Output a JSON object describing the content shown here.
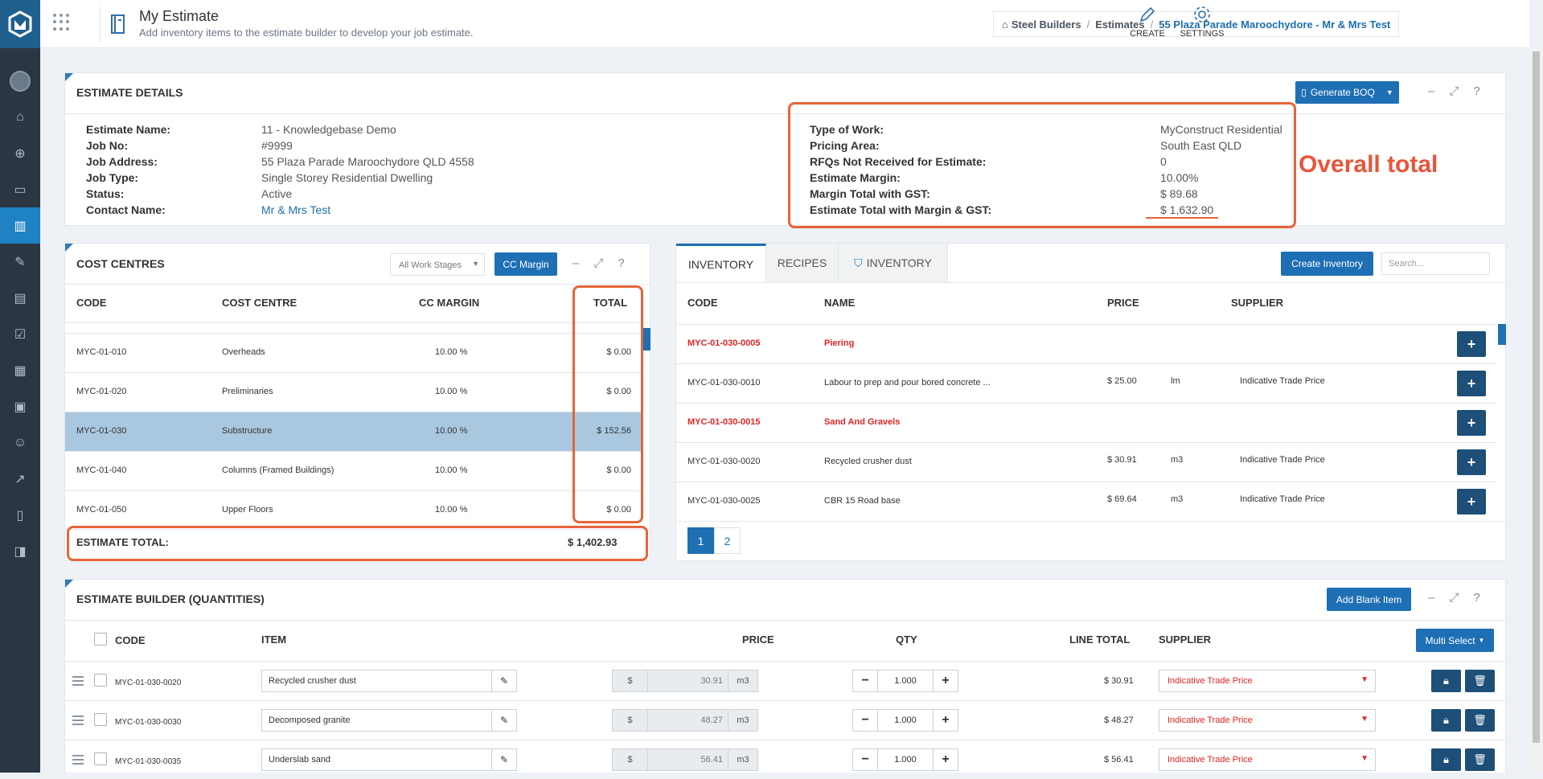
{
  "header": {
    "title": "My Estimate",
    "subtitle": "Add inventory items to the estimate builder to develop your job estimate.",
    "breadcrumb": [
      "Steel Builders",
      "Estimates",
      "55 Plaza Parade Maroochydore - Mr & Mrs Test"
    ],
    "actions": {
      "create": "CREATE",
      "settings": "SETTINGS"
    }
  },
  "sidebar": {
    "items": [
      "home",
      "target",
      "briefcase",
      "book",
      "edit",
      "document",
      "checklist",
      "building",
      "calendar",
      "user",
      "chart",
      "clipboard",
      "bookmark"
    ],
    "active_index": 3
  },
  "estimate_details": {
    "title": "ESTIMATE DETAILS",
    "generate_label": "Generate BOQ",
    "left": [
      {
        "label": "Estimate Name:",
        "value": "11 - Knowledgebase Demo"
      },
      {
        "label": "Job No:",
        "value": "#9999"
      },
      {
        "label": "Job Address:",
        "value": "55 Plaza Parade Maroochydore QLD 4558"
      },
      {
        "label": "Job Type:",
        "value": "Single Storey Residential Dwelling"
      },
      {
        "label": "Status:",
        "value": "Active"
      },
      {
        "label": "Contact Name:",
        "value": "Mr & Mrs Test"
      }
    ],
    "right": [
      {
        "label": "Type of Work:",
        "value": "MyConstruct Residential"
      },
      {
        "label": "Pricing Area:",
        "value": "South East QLD"
      },
      {
        "label": "RFQs Not Received for Estimate:",
        "value": "0"
      },
      {
        "label": "Estimate Margin:",
        "value": "10.00%"
      },
      {
        "label": "Margin Total with GST:",
        "value": "$ 89.68"
      },
      {
        "label": "Estimate Total with Margin & GST:",
        "value": "$ 1,632.90"
      }
    ],
    "annotation": "Overall total"
  },
  "cost_centres": {
    "title": "COST CENTRES",
    "stage_select": "All Work Stages",
    "margin_btn": "CC Margin",
    "columns": [
      "CODE",
      "COST CENTRE",
      "CC MARGIN",
      "TOTAL"
    ],
    "rows": [
      {
        "code": "MYC-01-010",
        "name": "Overheads",
        "margin": "10.00 %",
        "total": "$ 0.00"
      },
      {
        "code": "MYC-01-020",
        "name": "Preliminaries",
        "margin": "10.00 %",
        "total": "$ 0.00"
      },
      {
        "code": "MYC-01-030",
        "name": "Substructure",
        "margin": "10.00 %",
        "total": "$ 152.56"
      },
      {
        "code": "MYC-01-040",
        "name": "Columns (Framed Buildings)",
        "margin": "10.00 %",
        "total": "$ 0.00"
      },
      {
        "code": "MYC-01-050",
        "name": "Upper Floors",
        "margin": "10.00 %",
        "total": "$ 0.00"
      }
    ],
    "selected_index": 2,
    "total_label": "ESTIMATE TOTAL:",
    "total_value": "$ 1,402.93"
  },
  "inventory": {
    "tabs": [
      "INVENTORY",
      "RECIPES",
      "INVENTORY"
    ],
    "create_btn": "Create Inventory",
    "search_placeholder": "Search...",
    "columns": [
      "CODE",
      "NAME",
      "PRICE",
      "SUPPLIER"
    ],
    "rows": [
      {
        "code": "MYC-01-030-0005",
        "name": "Piering",
        "price": "",
        "unit": "",
        "supplier": "",
        "header": true
      },
      {
        "code": "MYC-01-030-0010",
        "name": "Labour to prep and pour bored concrete ...",
        "price": "$ 25.00",
        "unit": "lm",
        "supplier": "Indicative Trade Price",
        "header": false
      },
      {
        "code": "MYC-01-030-0015",
        "name": "Sand And Gravels",
        "price": "",
        "unit": "",
        "supplier": "",
        "header": true
      },
      {
        "code": "MYC-01-030-0020",
        "name": "Recycled crusher dust",
        "price": "$ 30.91",
        "unit": "m3",
        "supplier": "Indicative Trade Price",
        "header": false
      },
      {
        "code": "MYC-01-030-0025",
        "name": "CBR 15 Road base",
        "price": "$ 69.64",
        "unit": "m3",
        "supplier": "Indicative Trade Price",
        "header": false
      }
    ],
    "pages": [
      "1",
      "2"
    ]
  },
  "builder": {
    "title": "ESTIMATE BUILDER (QUANTITIES)",
    "add_btn": "Add Blank Item",
    "multi_btn": "Multi Select",
    "columns": [
      "CODE",
      "ITEM",
      "PRICE",
      "QTY",
      "LINE TOTAL",
      "SUPPLIER"
    ],
    "currency": "$",
    "rows": [
      {
        "code": "MYC-01-030-0020",
        "item": "Recycled crusher dust",
        "price": "30.91",
        "unit": "m3",
        "qty": "1.000",
        "line_total": "$ 30.91",
        "supplier": "Indicative Trade Price"
      },
      {
        "code": "MYC-01-030-0030",
        "item": "Decomposed granite",
        "price": "48.27",
        "unit": "m3",
        "qty": "1.000",
        "line_total": "$ 48.27",
        "supplier": "Indicative Trade Price"
      },
      {
        "code": "MYC-01-030-0035",
        "item": "Underslab sand",
        "price": "56.41",
        "unit": "m3",
        "qty": "1.000",
        "line_total": "$ 56.41",
        "supplier": "Indicative Trade Price"
      }
    ]
  },
  "colors": {
    "sidebar": "#2b3643",
    "accent": "#1f6fb5",
    "annotation": "#e8643a",
    "selected_row": "#a9c8e0",
    "dark_button": "#1d4f78"
  }
}
